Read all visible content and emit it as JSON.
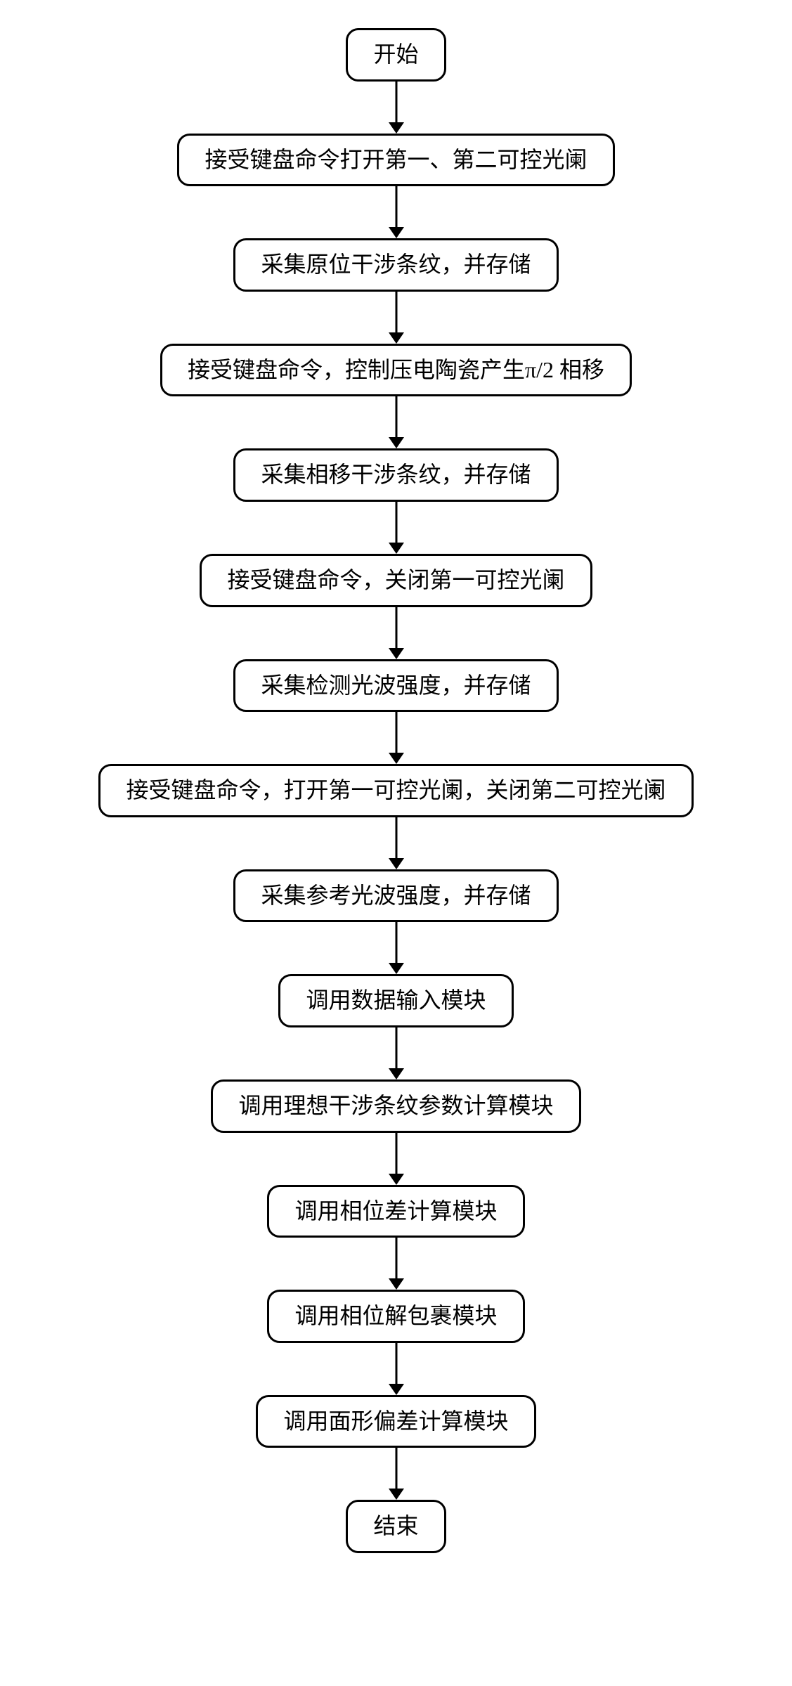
{
  "flowchart": {
    "type": "flowchart",
    "direction": "vertical",
    "background_color": "#ffffff",
    "node_border_color": "#000000",
    "node_border_width": 3,
    "node_border_radius": 18,
    "node_fill": "#ffffff",
    "node_font_size": 32,
    "node_font_family": "SimSun",
    "node_text_color": "#000000",
    "node_padding_x": 36,
    "node_padding_y": 14,
    "arrow_stroke": "#000000",
    "arrow_stroke_width": 3,
    "arrow_head_width": 22,
    "arrow_head_height": 16,
    "arrow_shaft_length": 58,
    "steps": [
      {
        "label": "开始"
      },
      {
        "label": "接受键盘命令打开第一、第二可控光阑"
      },
      {
        "label": "采集原位干涉条纹，并存储"
      },
      {
        "label": "接受键盘命令，控制压电陶瓷产生π/2 相移"
      },
      {
        "label": "采集相移干涉条纹，并存储"
      },
      {
        "label": "接受键盘命令，关闭第一可控光阑"
      },
      {
        "label": "采集检测光波强度，并存储"
      },
      {
        "label": "接受键盘命令，打开第一可控光阑，关闭第二可控光阑"
      },
      {
        "label": "采集参考光波强度，并存储"
      },
      {
        "label": "调用数据输入模块"
      },
      {
        "label": "调用理想干涉条纹参数计算模块"
      },
      {
        "label": "调用相位差计算模块"
      },
      {
        "label": "调用相位解包裹模块"
      },
      {
        "label": "调用面形偏差计算模块"
      },
      {
        "label": "结束"
      }
    ]
  }
}
